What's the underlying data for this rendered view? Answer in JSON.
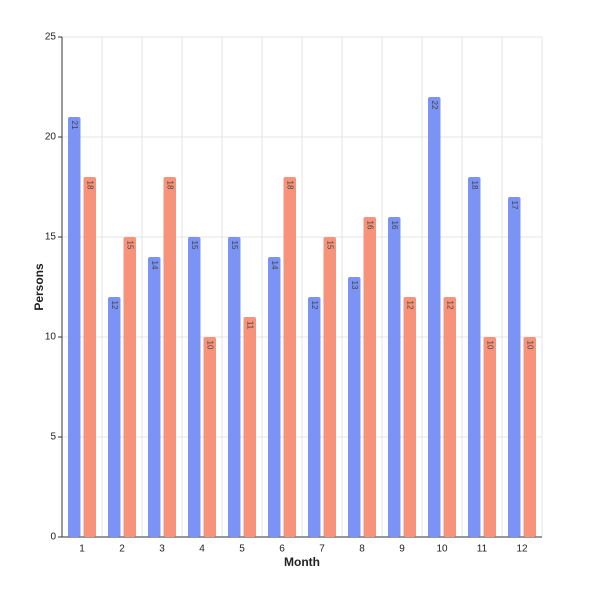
{
  "chart_data": {
    "type": "bar",
    "x_label": "Month",
    "y_label": "Persons",
    "categories": [
      "1",
      "2",
      "3",
      "4",
      "5",
      "6",
      "7",
      "8",
      "9",
      "10",
      "11",
      "12"
    ],
    "series": [
      {
        "color": "#7b93f5",
        "values": [
          21,
          12,
          14,
          15,
          15,
          14,
          12,
          13,
          16,
          22,
          18,
          17
        ]
      },
      {
        "color": "#f7937a",
        "values": [
          18,
          15,
          18,
          10,
          11,
          18,
          15,
          16,
          12,
          12,
          10,
          10
        ]
      }
    ],
    "ylim": [
      0,
      25
    ],
    "yticks": [
      0,
      5,
      10,
      15,
      20,
      25
    ],
    "grid": true
  }
}
